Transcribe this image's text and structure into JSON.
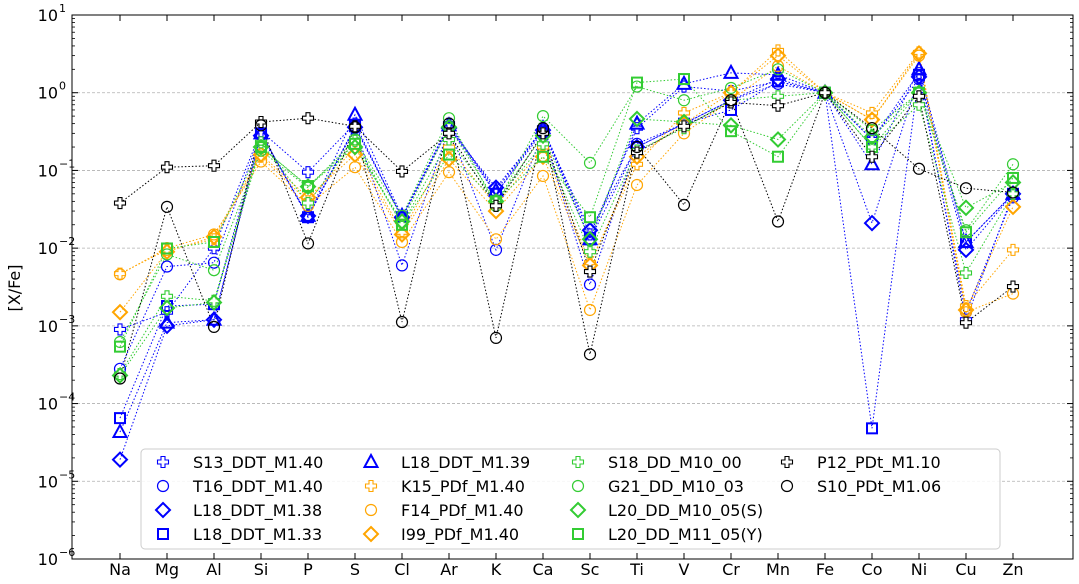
{
  "chart_data": {
    "type": "scatter",
    "title": "",
    "xlabel": "",
    "ylabel": "[X/Fe]",
    "yscale": "log",
    "ylim": [
      1e-06,
      10
    ],
    "y_ticks": [
      {
        "v": 1e-06,
        "base": "10",
        "exp": "−6"
      },
      {
        "v": 1e-05,
        "base": "10",
        "exp": "−5"
      },
      {
        "v": 0.0001,
        "base": "10",
        "exp": "−4"
      },
      {
        "v": 0.001,
        "base": "10",
        "exp": "−3"
      },
      {
        "v": 0.01,
        "base": "10",
        "exp": "−2"
      },
      {
        "v": 0.1,
        "base": "10",
        "exp": "−1"
      },
      {
        "v": 1,
        "base": "10",
        "exp": "0"
      },
      {
        "v": 10,
        "base": "10",
        "exp": "1"
      }
    ],
    "grid": "horizontal dashed",
    "legend_position": "bottom",
    "categories": [
      "Na",
      "Mg",
      "Al",
      "Si",
      "P",
      "S",
      "Cl",
      "Ar",
      "K",
      "Ca",
      "Sc",
      "Ti",
      "V",
      "Cr",
      "Mn",
      "Fe",
      "Co",
      "Ni",
      "Cu",
      "Zn"
    ],
    "series": [
      {
        "name": "S13_DDT_M1.40",
        "color": "#0000ff",
        "marker": "plus",
        "values": [
          0.0009,
          0.0015,
          0.01,
          0.32,
          0.095,
          0.4,
          0.024,
          0.4,
          0.05,
          0.35,
          0.015,
          0.35,
          1.2,
          1.05,
          1.4,
          1.0,
          0.25,
          1.8,
          0.0012,
          0.05
        ]
      },
      {
        "name": "T16_DDT_M1.40",
        "color": "#0000ff",
        "marker": "circle",
        "values": [
          0.00028,
          0.0058,
          0.0065,
          0.3,
          0.025,
          0.35,
          0.006,
          0.35,
          0.0095,
          0.3,
          0.0034,
          0.22,
          0.4,
          0.8,
          1.3,
          1.0,
          0.25,
          1.5,
          0.0015,
          0.045
        ]
      },
      {
        "name": "L18_DDT_M1.38",
        "color": "#0000ff",
        "marker": "diamond",
        "values": [
          1.9e-05,
          0.001,
          0.0012,
          0.28,
          0.026,
          0.36,
          0.025,
          0.35,
          0.06,
          0.33,
          0.017,
          0.2,
          0.4,
          0.8,
          1.5,
          1.0,
          0.021,
          1.6,
          0.0095,
          0.05
        ]
      },
      {
        "name": "L18_DDT_M1.33",
        "color": "#0000ff",
        "marker": "square",
        "values": [
          6.5e-05,
          0.0018,
          0.0019,
          0.3,
          0.025,
          0.37,
          0.025,
          0.36,
          0.05,
          0.32,
          0.013,
          0.2,
          0.4,
          0.6,
          1.4,
          1.0,
          4.8e-05,
          1.7,
          0.012,
          0.05
        ]
      },
      {
        "name": "L18_DDT_M1.39",
        "color": "#0000ff",
        "marker": "triangle",
        "values": [
          4.3e-05,
          0.0011,
          0.0012,
          0.3,
          0.026,
          0.52,
          0.026,
          0.38,
          0.055,
          0.35,
          0.013,
          0.4,
          1.3,
          1.8,
          1.7,
          1.0,
          0.12,
          2.0,
          0.012,
          0.05
        ]
      },
      {
        "name": "K15_PDf_M1.40",
        "color": "#ffa500",
        "marker": "plus",
        "values": [
          0.0047,
          0.0095,
          0.013,
          0.15,
          0.04,
          0.2,
          0.016,
          0.2,
          0.035,
          0.2,
          0.0065,
          0.12,
          0.55,
          1.0,
          3.5,
          1.0,
          0.55,
          3.3,
          0.0018,
          0.0095
        ]
      },
      {
        "name": "F14_PDf_M1.40",
        "color": "#ffa500",
        "marker": "circle",
        "values": [
          0.0046,
          0.01,
          0.015,
          0.13,
          0.035,
          0.11,
          0.012,
          0.095,
          0.013,
          0.085,
          0.0016,
          0.065,
          0.3,
          0.8,
          2.2,
          1.0,
          0.45,
          3.0,
          0.0015,
          0.0026
        ]
      },
      {
        "name": "I99_PDf_M1.40",
        "color": "#ffa500",
        "marker": "diamond",
        "values": [
          0.0015,
          0.009,
          0.014,
          0.16,
          0.045,
          0.16,
          0.015,
          0.14,
          0.03,
          0.15,
          0.006,
          0.15,
          0.4,
          1.0,
          3.0,
          1.0,
          0.45,
          3.2,
          0.0016,
          0.034
        ]
      },
      {
        "name": "S18_DD_M10_00",
        "color": "#33cc33",
        "marker": "plus",
        "values": [
          0.00024,
          0.0024,
          0.0021,
          0.23,
          0.038,
          0.24,
          0.02,
          0.25,
          0.04,
          0.22,
          0.009,
          0.18,
          0.35,
          0.8,
          0.9,
          1.0,
          0.2,
          0.7,
          0.0048,
          0.05
        ]
      },
      {
        "name": "G21_DD_M10_03",
        "color": "#33cc33",
        "marker": "circle",
        "values": [
          0.00062,
          0.0083,
          0.0052,
          0.18,
          0.06,
          0.25,
          0.026,
          0.47,
          0.035,
          0.5,
          0.125,
          1.2,
          0.8,
          1.15,
          2.0,
          1.0,
          0.33,
          1.0,
          0.017,
          0.12
        ]
      },
      {
        "name": "L20_DD_M10_05(S)",
        "color": "#33cc33",
        "marker": "diamond",
        "values": [
          0.00023,
          0.0017,
          0.002,
          0.2,
          0.062,
          0.2,
          0.022,
          0.36,
          0.04,
          0.28,
          0.013,
          0.46,
          0.42,
          0.38,
          0.25,
          1.0,
          0.27,
          1.0,
          0.033,
          0.07
        ]
      },
      {
        "name": "L20_DD_M11_05(Y)",
        "color": "#33cc33",
        "marker": "square",
        "values": [
          0.00054,
          0.0099,
          0.012,
          0.2,
          0.063,
          0.22,
          0.02,
          0.16,
          0.04,
          0.15,
          0.025,
          1.35,
          1.5,
          0.32,
          0.15,
          1.0,
          0.2,
          1.0,
          0.016,
          0.08
        ]
      },
      {
        "name": "P12_PDt_M1.10",
        "color": "#000000",
        "marker": "plus",
        "values": [
          0.038,
          0.11,
          0.115,
          0.42,
          0.47,
          0.37,
          0.097,
          0.3,
          0.035,
          0.3,
          0.005,
          0.17,
          0.37,
          0.75,
          0.68,
          1.0,
          0.15,
          0.9,
          0.0011,
          0.0032
        ]
      },
      {
        "name": "S10_PDt_M1.06",
        "color": "#000000",
        "marker": "circle",
        "values": [
          0.00021,
          0.034,
          0.00097,
          0.38,
          0.0115,
          0.36,
          0.00112,
          0.4,
          0.0007,
          0.35,
          0.00043,
          0.2,
          0.036,
          0.8,
          0.022,
          1.0,
          0.35,
          0.105,
          0.059,
          0.052
        ]
      }
    ]
  }
}
